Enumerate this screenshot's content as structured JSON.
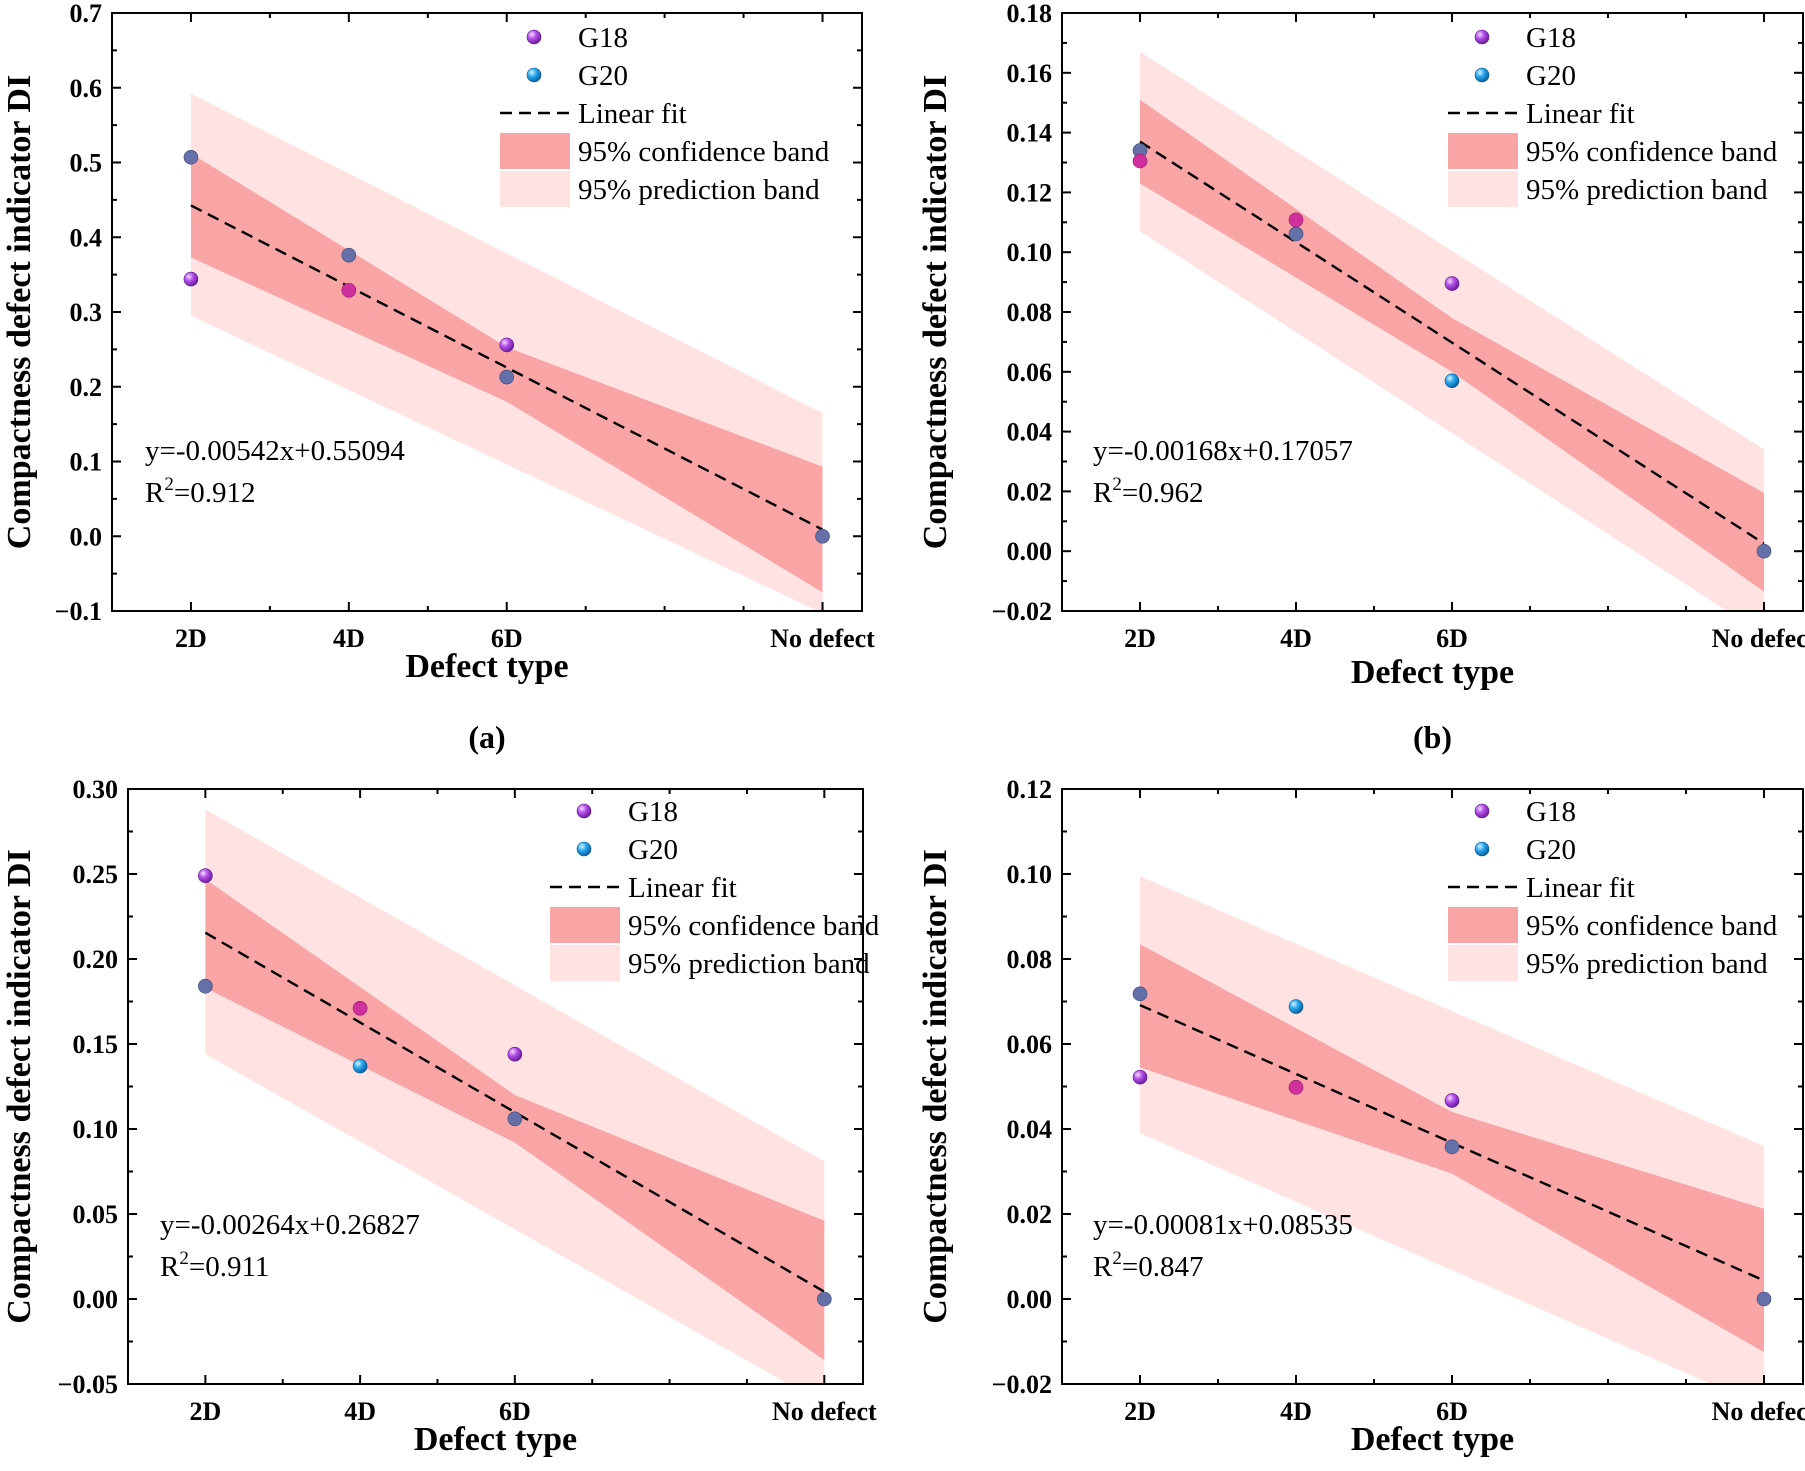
{
  "colors": {
    "prediction_band": "#ffe3e3",
    "confidence_band": "#f9a5a5",
    "g18": "#a93ee0",
    "g20": "#1e9ee8",
    "overlap": "#6570a8",
    "g18_on_band": "#d0309c"
  },
  "chart_data": [
    {
      "type": "scatter",
      "panel_label": "(a)",
      "xlabel": "Defect type",
      "ylabel": "Compactness defect indicator DI",
      "x_ticks": [
        {
          "label": "2D",
          "x": 20
        },
        {
          "label": "4D",
          "x": 40
        },
        {
          "label": "6D",
          "x": 60
        },
        {
          "label": "No defect",
          "x": 100
        }
      ],
      "xlim": [
        10,
        105
      ],
      "ylim": [
        -0.1,
        0.7
      ],
      "yticks": [
        -0.1,
        0.0,
        0.1,
        0.2,
        0.3,
        0.4,
        0.5,
        0.6,
        0.7
      ],
      "ytick_labels": [
        "−0.1",
        "0.0",
        "0.1",
        "0.2",
        "0.3",
        "0.4",
        "0.5",
        "0.6",
        "0.7"
      ],
      "series": [
        {
          "name": "G18",
          "x": [
            20,
            40,
            60
          ],
          "y": [
            0.344,
            0.329,
            0.256
          ]
        },
        {
          "name": "G20",
          "x": [
            20,
            40,
            60,
            100
          ],
          "y": [
            0.507,
            0.376,
            0.213,
            0.0
          ]
        }
      ],
      "fit": {
        "slope": -0.00542,
        "intercept": 0.55094,
        "x_range": [
          20,
          100
        ]
      },
      "confidence_band": {
        "x": [
          20,
          60,
          100
        ],
        "upper": [
          0.512,
          0.253,
          0.093
        ],
        "lower": [
          0.373,
          0.18,
          -0.075
        ]
      },
      "prediction_band": {
        "x": [
          20,
          100
        ],
        "upper": [
          0.592,
          0.165
        ],
        "lower": [
          0.295,
          -0.103
        ]
      },
      "legend": [
        "G18",
        "G20",
        "Linear fit",
        "95% confidence band",
        "95% prediction band"
      ],
      "equation": "y=-0.00542x+0.55094",
      "r2_prefix": "R",
      "r2_sup": "2",
      "r2_value": "=0.912"
    },
    {
      "type": "scatter",
      "panel_label": "(b)",
      "xlabel": "Defect type",
      "ylabel": "Compactness defect indicator DI",
      "x_ticks": [
        {
          "label": "2D",
          "x": 20
        },
        {
          "label": "4D",
          "x": 40
        },
        {
          "label": "6D",
          "x": 60
        },
        {
          "label": "No defect",
          "x": 100
        }
      ],
      "xlim": [
        10,
        105
      ],
      "ylim": [
        -0.02,
        0.18
      ],
      "yticks": [
        -0.02,
        0.0,
        0.02,
        0.04,
        0.06,
        0.08,
        0.1,
        0.12,
        0.14,
        0.16,
        0.18
      ],
      "ytick_labels": [
        "−0.02",
        "0.00",
        "0.02",
        "0.04",
        "0.06",
        "0.08",
        "0.10",
        "0.12",
        "0.14",
        "0.16",
        "0.18"
      ],
      "series": [
        {
          "name": "G18",
          "x": [
            20,
            40,
            60
          ],
          "y": [
            0.1305,
            0.1108,
            0.0895
          ]
        },
        {
          "name": "G20",
          "x": [
            20,
            40,
            60,
            100
          ],
          "y": [
            0.134,
            0.1061,
            0.057,
            0.0
          ]
        }
      ],
      "fit": {
        "slope": -0.00168,
        "intercept": 0.17057,
        "x_range": [
          20,
          100
        ]
      },
      "confidence_band": {
        "x": [
          20,
          60,
          100
        ],
        "upper": [
          0.151,
          0.078,
          0.0195
        ],
        "lower": [
          0.123,
          0.06,
          -0.0135
        ]
      },
      "prediction_band": {
        "x": [
          20,
          100
        ],
        "upper": [
          0.167,
          0.034
        ],
        "lower": [
          0.107,
          -0.028
        ]
      },
      "legend": [
        "G18",
        "G20",
        "Linear fit",
        "95% confidence band",
        "95% prediction band"
      ],
      "equation": "y=-0.00168x+0.17057",
      "r2_prefix": "R",
      "r2_sup": "2",
      "r2_value": "=0.962"
    },
    {
      "type": "scatter",
      "panel_label": "",
      "xlabel": "Defect type",
      "ylabel": "Compactness defect indicator DI",
      "x_ticks": [
        {
          "label": "2D",
          "x": 20
        },
        {
          "label": "4D",
          "x": 40
        },
        {
          "label": "6D",
          "x": 60
        },
        {
          "label": "No defect",
          "x": 100
        }
      ],
      "xlim": [
        10,
        105
      ],
      "ylim": [
        -0.05,
        0.3
      ],
      "yticks": [
        -0.05,
        0.0,
        0.05,
        0.1,
        0.15,
        0.2,
        0.25,
        0.3
      ],
      "ytick_labels": [
        "−0.05",
        "0.00",
        "0.05",
        "0.10",
        "0.15",
        "0.20",
        "0.25",
        "0.30"
      ],
      "series": [
        {
          "name": "G18",
          "x": [
            20,
            40,
            60
          ],
          "y": [
            0.249,
            0.171,
            0.144
          ]
        },
        {
          "name": "G20",
          "x": [
            20,
            40,
            60,
            100
          ],
          "y": [
            0.184,
            0.137,
            0.106,
            0.0
          ]
        }
      ],
      "fit": {
        "slope": -0.00264,
        "intercept": 0.26827,
        "x_range": [
          20,
          100
        ]
      },
      "confidence_band": {
        "x": [
          20,
          60,
          100
        ],
        "upper": [
          0.247,
          0.12,
          0.046
        ],
        "lower": [
          0.183,
          0.092,
          -0.036
        ]
      },
      "prediction_band": {
        "x": [
          20,
          100
        ],
        "upper": [
          0.288,
          0.081
        ],
        "lower": [
          0.144,
          -0.062
        ]
      },
      "legend": [
        "G18",
        "G20",
        "Linear fit",
        "95% confidence band",
        "95% prediction band"
      ],
      "equation": "y=-0.00264x+0.26827",
      "r2_prefix": "R",
      "r2_sup": "2",
      "r2_value": "=0.911"
    },
    {
      "type": "scatter",
      "panel_label": "",
      "xlabel": "Defect type",
      "ylabel": "Compactness defect indicator DI",
      "x_ticks": [
        {
          "label": "2D",
          "x": 20
        },
        {
          "label": "4D",
          "x": 40
        },
        {
          "label": "6D",
          "x": 60
        },
        {
          "label": "No defect",
          "x": 100
        }
      ],
      "xlim": [
        10,
        105
      ],
      "ylim": [
        -0.02,
        0.12
      ],
      "yticks": [
        -0.02,
        0.0,
        0.02,
        0.04,
        0.06,
        0.08,
        0.1,
        0.12
      ],
      "ytick_labels": [
        "−0.02",
        "0.00",
        "0.02",
        "0.04",
        "0.06",
        "0.08",
        "0.10",
        "0.12"
      ],
      "series": [
        {
          "name": "G18",
          "x": [
            20,
            40,
            60
          ],
          "y": [
            0.0522,
            0.0498,
            0.0467
          ]
        },
        {
          "name": "G20",
          "x": [
            20,
            40,
            60,
            100
          ],
          "y": [
            0.0718,
            0.0688,
            0.0358,
            0.0
          ]
        }
      ],
      "fit": {
        "slope": -0.00081,
        "intercept": 0.08535,
        "x_range": [
          20,
          100
        ]
      },
      "confidence_band": {
        "x": [
          20,
          60,
          100
        ],
        "upper": [
          0.0835,
          0.044,
          0.0212
        ],
        "lower": [
          0.0545,
          0.0295,
          -0.0125
        ]
      },
      "prediction_band": {
        "x": [
          20,
          100
        ],
        "upper": [
          0.0995,
          0.036
        ],
        "lower": [
          0.039,
          -0.0255
        ]
      },
      "legend": [
        "G18",
        "G20",
        "Linear fit",
        "95% confidence band",
        "95% prediction band"
      ],
      "equation": "y=-0.00081x+0.08535",
      "r2_prefix": "R",
      "r2_sup": "2",
      "r2_value": "=0.847"
    }
  ]
}
